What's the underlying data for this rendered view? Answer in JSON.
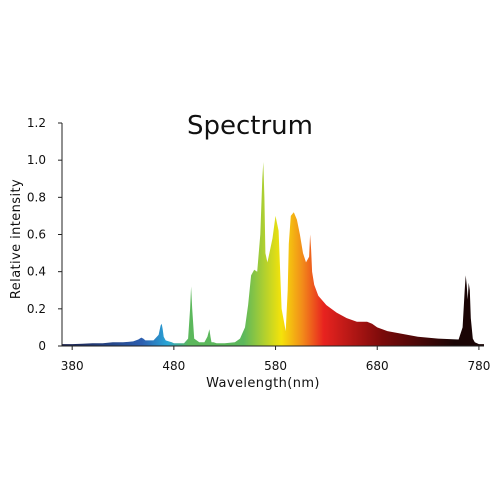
{
  "chart_data": {
    "type": "area",
    "title": "Spectrum",
    "xlabel": "Wavelength(nm)",
    "ylabel": "Relative intensity",
    "xlim": [
      370,
      785
    ],
    "ylim": [
      0,
      1.2
    ],
    "x_ticks": [
      380,
      480,
      580,
      680,
      780
    ],
    "y_ticks": [
      0,
      0.2,
      0.4,
      0.6,
      0.8,
      1.0,
      1.2
    ],
    "y_tick_labels": [
      "0",
      "0.2",
      "0.4",
      "0.6",
      "0.8",
      "1.0",
      "1.2"
    ],
    "grid": false,
    "legend": "none",
    "fill": "wavelength-colored gradient",
    "colors": {
      "violet": "#1a1f4a",
      "blue": "#2d5fb0",
      "cyan": "#2aa6d6",
      "green": "#5cb85c",
      "yellow": "#f5e30a",
      "orange": "#f28b1a",
      "red": "#e8231f",
      "dark_red": "#7a0a0a",
      "deep": "#1a0505"
    },
    "series": [
      {
        "x": [
          370,
          380,
          390,
          400,
          410,
          420,
          430,
          440,
          445,
          448,
          450,
          452,
          455,
          460,
          465,
          467,
          468,
          469,
          470,
          472,
          475,
          478,
          480,
          490,
          494,
          496,
          497,
          498,
          500,
          505,
          510,
          513,
          515,
          516,
          517,
          519,
          522,
          530,
          540,
          545,
          550,
          553,
          556,
          559,
          562,
          565,
          567,
          568,
          569,
          570,
          572,
          574,
          577,
          580,
          583,
          586,
          590,
          592,
          593,
          595,
          598,
          601,
          604,
          607,
          610,
          613,
          614,
          615,
          616,
          618,
          622,
          630,
          640,
          650,
          660,
          670,
          675,
          680,
          690,
          700,
          720,
          740,
          760,
          764,
          766,
          767,
          768,
          769,
          770,
          771,
          772,
          774,
          776,
          780,
          785
        ],
        "y": [
          0.01,
          0.01,
          0.012,
          0.015,
          0.015,
          0.02,
          0.02,
          0.025,
          0.035,
          0.045,
          0.04,
          0.03,
          0.03,
          0.03,
          0.06,
          0.11,
          0.12,
          0.09,
          0.05,
          0.03,
          0.025,
          0.02,
          0.015,
          0.015,
          0.04,
          0.2,
          0.32,
          0.2,
          0.04,
          0.02,
          0.02,
          0.05,
          0.09,
          0.05,
          0.02,
          0.02,
          0.015,
          0.015,
          0.02,
          0.04,
          0.1,
          0.22,
          0.38,
          0.41,
          0.4,
          0.6,
          0.9,
          0.99,
          0.8,
          0.5,
          0.45,
          0.5,
          0.58,
          0.7,
          0.62,
          0.2,
          0.08,
          0.3,
          0.55,
          0.7,
          0.72,
          0.68,
          0.6,
          0.5,
          0.45,
          0.48,
          0.6,
          0.52,
          0.4,
          0.33,
          0.27,
          0.22,
          0.18,
          0.15,
          0.13,
          0.13,
          0.12,
          0.1,
          0.08,
          0.07,
          0.05,
          0.04,
          0.035,
          0.1,
          0.3,
          0.38,
          0.33,
          0.25,
          0.34,
          0.3,
          0.15,
          0.04,
          0.02,
          0.01,
          0.01
        ]
      }
    ]
  }
}
